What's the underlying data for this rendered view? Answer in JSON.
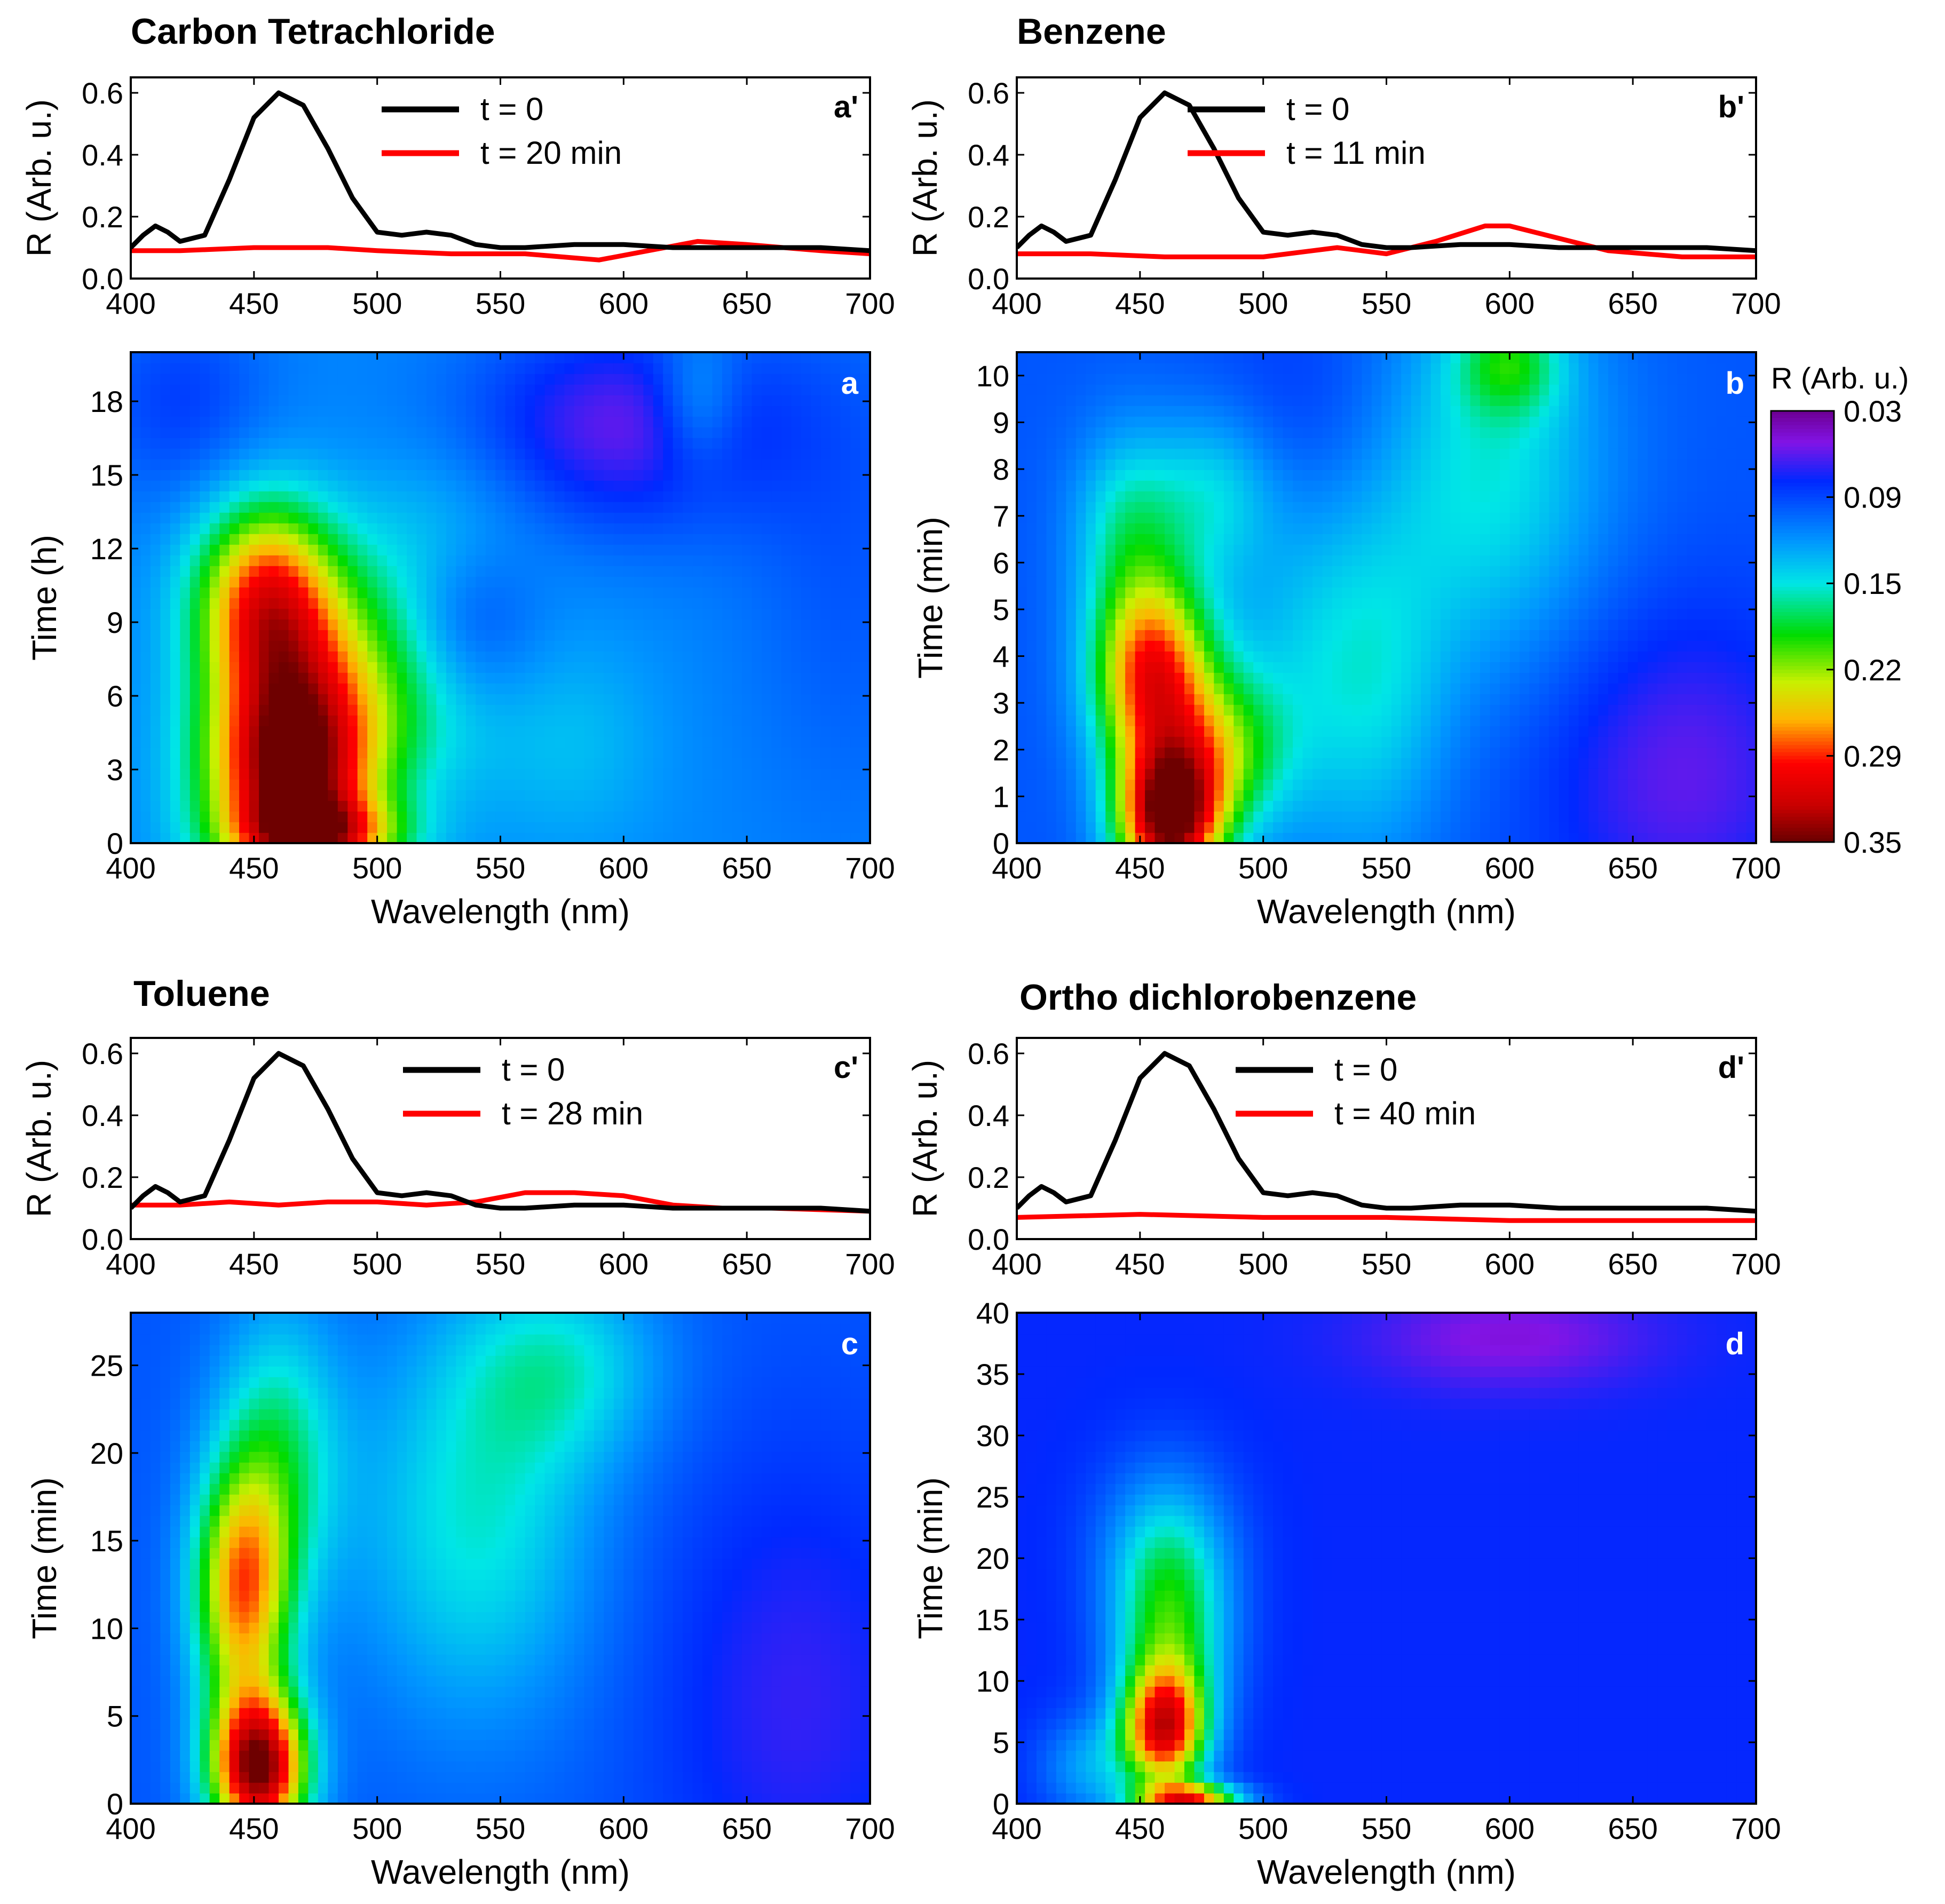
{
  "chart_data": [
    {
      "id": "a_prime",
      "type": "line",
      "title": "Carbon Tetrachloride",
      "panel_label": "a'",
      "xlabel": "",
      "ylabel": "R (Arb. u.)",
      "xlim": [
        400,
        700
      ],
      "ylim": [
        0.0,
        0.65
      ],
      "xticks": [
        "400",
        "450",
        "500",
        "550",
        "600",
        "650",
        "700"
      ],
      "yticks": [
        "0.0",
        "0.2",
        "0.4",
        "0.6"
      ],
      "legend": [
        "t = 0",
        "t = 20 min"
      ],
      "series": [
        {
          "name": "t = 0",
          "color": "#000000",
          "x": [
            400,
            405,
            410,
            415,
            420,
            430,
            440,
            450,
            460,
            470,
            480,
            490,
            500,
            510,
            520,
            530,
            540,
            550,
            560,
            580,
            600,
            620,
            640,
            660,
            680,
            700
          ],
          "y": [
            0.1,
            0.14,
            0.17,
            0.15,
            0.12,
            0.14,
            0.32,
            0.52,
            0.6,
            0.56,
            0.42,
            0.26,
            0.15,
            0.14,
            0.15,
            0.14,
            0.11,
            0.1,
            0.1,
            0.11,
            0.11,
            0.1,
            0.1,
            0.1,
            0.1,
            0.09
          ]
        },
        {
          "name": "t = 20 min",
          "color": "#ff0000",
          "x": [
            400,
            420,
            450,
            480,
            500,
            530,
            560,
            590,
            610,
            630,
            650,
            680,
            700
          ],
          "y": [
            0.09,
            0.09,
            0.1,
            0.1,
            0.09,
            0.08,
            0.08,
            0.06,
            0.09,
            0.12,
            0.11,
            0.09,
            0.08
          ]
        }
      ]
    },
    {
      "id": "b_prime",
      "type": "line",
      "title": "Benzene",
      "panel_label": "b'",
      "xlabel": "",
      "ylabel": "R (Arb. u.)",
      "xlim": [
        400,
        700
      ],
      "ylim": [
        0.0,
        0.65
      ],
      "xticks": [
        "400",
        "450",
        "500",
        "550",
        "600",
        "650",
        "700"
      ],
      "yticks": [
        "0.0",
        "0.2",
        "0.4",
        "0.6"
      ],
      "legend": [
        "t = 0",
        "t = 11 min"
      ],
      "series": [
        {
          "name": "t = 0",
          "color": "#000000",
          "x": [
            400,
            405,
            410,
            415,
            420,
            430,
            440,
            450,
            460,
            470,
            480,
            490,
            500,
            510,
            520,
            530,
            540,
            550,
            560,
            580,
            600,
            620,
            640,
            660,
            680,
            700
          ],
          "y": [
            0.1,
            0.14,
            0.17,
            0.15,
            0.12,
            0.14,
            0.32,
            0.52,
            0.6,
            0.56,
            0.42,
            0.26,
            0.15,
            0.14,
            0.15,
            0.14,
            0.11,
            0.1,
            0.1,
            0.11,
            0.11,
            0.1,
            0.1,
            0.1,
            0.1,
            0.09
          ]
        },
        {
          "name": "t = 11 min",
          "color": "#ff0000",
          "x": [
            400,
            430,
            460,
            500,
            520,
            530,
            550,
            570,
            590,
            600,
            620,
            640,
            670,
            700
          ],
          "y": [
            0.08,
            0.08,
            0.07,
            0.07,
            0.09,
            0.1,
            0.08,
            0.12,
            0.17,
            0.17,
            0.13,
            0.09,
            0.07,
            0.07
          ]
        }
      ]
    },
    {
      "id": "c_prime",
      "type": "line",
      "title": "Toluene",
      "panel_label": "c'",
      "xlabel": "",
      "ylabel": "R (Arb. u.)",
      "xlim": [
        400,
        700
      ],
      "ylim": [
        0.0,
        0.65
      ],
      "xticks": [
        "400",
        "450",
        "500",
        "550",
        "600",
        "650",
        "700"
      ],
      "yticks": [
        "0.0",
        "0.2",
        "0.4",
        "0.6"
      ],
      "legend": [
        "t = 0",
        "t = 28 min"
      ],
      "series": [
        {
          "name": "t = 0",
          "color": "#000000",
          "x": [
            400,
            405,
            410,
            415,
            420,
            430,
            440,
            450,
            460,
            470,
            480,
            490,
            500,
            510,
            520,
            530,
            540,
            550,
            560,
            580,
            600,
            620,
            640,
            660,
            680,
            700
          ],
          "y": [
            0.1,
            0.14,
            0.17,
            0.15,
            0.12,
            0.14,
            0.32,
            0.52,
            0.6,
            0.56,
            0.42,
            0.26,
            0.15,
            0.14,
            0.15,
            0.14,
            0.11,
            0.1,
            0.1,
            0.11,
            0.11,
            0.1,
            0.1,
            0.1,
            0.1,
            0.09
          ]
        },
        {
          "name": "t = 28 min",
          "color": "#ff0000",
          "x": [
            400,
            420,
            440,
            460,
            480,
            500,
            520,
            540,
            560,
            580,
            600,
            620,
            640,
            660,
            700
          ],
          "y": [
            0.11,
            0.11,
            0.12,
            0.11,
            0.12,
            0.12,
            0.11,
            0.12,
            0.15,
            0.15,
            0.14,
            0.11,
            0.1,
            0.1,
            0.09
          ]
        }
      ]
    },
    {
      "id": "d_prime",
      "type": "line",
      "title": "Ortho dichlorobenzene",
      "panel_label": "d'",
      "xlabel": "",
      "ylabel": "R (Arb. u.)",
      "xlim": [
        400,
        700
      ],
      "ylim": [
        0.0,
        0.65
      ],
      "xticks": [
        "400",
        "450",
        "500",
        "550",
        "600",
        "650",
        "700"
      ],
      "yticks": [
        "0.0",
        "0.2",
        "0.4",
        "0.6"
      ],
      "legend": [
        "t = 0",
        "t = 40 min"
      ],
      "series": [
        {
          "name": "t = 0",
          "color": "#000000",
          "x": [
            400,
            405,
            410,
            415,
            420,
            430,
            440,
            450,
            460,
            470,
            480,
            490,
            500,
            510,
            520,
            530,
            540,
            550,
            560,
            580,
            600,
            620,
            640,
            660,
            680,
            700
          ],
          "y": [
            0.1,
            0.14,
            0.17,
            0.15,
            0.12,
            0.14,
            0.32,
            0.52,
            0.6,
            0.56,
            0.42,
            0.26,
            0.15,
            0.14,
            0.15,
            0.14,
            0.11,
            0.1,
            0.1,
            0.11,
            0.11,
            0.1,
            0.1,
            0.1,
            0.1,
            0.09
          ]
        },
        {
          "name": "t = 40 min",
          "color": "#ff0000",
          "x": [
            400,
            450,
            500,
            550,
            600,
            650,
            700
          ],
          "y": [
            0.07,
            0.08,
            0.07,
            0.07,
            0.06,
            0.06,
            0.06
          ]
        }
      ]
    },
    {
      "id": "a",
      "type": "heatmap",
      "panel_label": "a",
      "xlabel": "Wavelength (nm)",
      "ylabel": "Time (h)",
      "xlim": [
        400,
        700
      ],
      "ylim": [
        0,
        20
      ],
      "xticks": [
        "400",
        "450",
        "500",
        "550",
        "600",
        "650",
        "700"
      ],
      "yticks": [
        "0",
        "3",
        "6",
        "9",
        "12",
        "15",
        "18"
      ],
      "background": 0.12,
      "blobs": [
        {
          "x": 465,
          "y": 3,
          "sx": 24,
          "sy": 3.5,
          "amp": 0.24
        },
        {
          "x": 455,
          "y": 10,
          "sx": 20,
          "sy": 2.8,
          "amp": 0.16
        },
        {
          "x": 478,
          "y": 0.4,
          "sx": 22,
          "sy": 1.0,
          "amp": 0.1
        },
        {
          "x": 505,
          "y": 7,
          "sx": 30,
          "sy": 3.5,
          "amp": 0.06
        },
        {
          "x": 530,
          "y": 11,
          "sx": 28,
          "sy": 3.5,
          "amp": 0.03
        },
        {
          "x": 630,
          "y": 18,
          "sx": 12,
          "sy": 2.0,
          "amp": 0.04
        },
        {
          "x": 580,
          "y": 4,
          "sx": 25,
          "sy": 3.0,
          "amp": 0.02
        },
        {
          "x": 535,
          "y": 9,
          "sx": 22,
          "sy": 2.5,
          "amp": -0.06
        },
        {
          "x": 600,
          "y": 17,
          "sx": 45,
          "sy": 3.0,
          "amp": -0.06
        },
        {
          "x": 420,
          "y": 18,
          "sx": 25,
          "sy": 3.0,
          "amp": -0.03
        },
        {
          "x": 690,
          "y": 12,
          "sx": 30,
          "sy": 8.0,
          "amp": -0.02
        }
      ]
    },
    {
      "id": "b",
      "type": "heatmap",
      "panel_label": "b",
      "xlabel": "Wavelength (nm)",
      "ylabel": "Time (min)",
      "xlim": [
        400,
        700
      ],
      "ylim": [
        0,
        10.5
      ],
      "xticks": [
        "400",
        "450",
        "500",
        "550",
        "600",
        "650",
        "700"
      ],
      "yticks": [
        "0",
        "1",
        "2",
        "3",
        "4",
        "5",
        "6",
        "7",
        "8",
        "9",
        "10"
      ],
      "background": 0.1,
      "blobs": [
        {
          "x": 462,
          "y": 0.5,
          "sx": 15,
          "sy": 1.1,
          "amp": 0.24
        },
        {
          "x": 455,
          "y": 3.6,
          "sx": 17,
          "sy": 1.5,
          "amp": 0.19
        },
        {
          "x": 483,
          "y": 2.0,
          "sx": 18,
          "sy": 1.2,
          "amp": 0.09
        },
        {
          "x": 445,
          "y": 6.8,
          "sx": 16,
          "sy": 1.5,
          "amp": 0.06
        },
        {
          "x": 480,
          "y": 7.5,
          "sx": 18,
          "sy": 1.3,
          "amp": 0.05
        },
        {
          "x": 520,
          "y": 4.0,
          "sx": 25,
          "sy": 3.0,
          "amp": 0.04
        },
        {
          "x": 590,
          "y": 8.0,
          "sx": 35,
          "sy": 3.0,
          "amp": 0.06
        },
        {
          "x": 600,
          "y": 10.3,
          "sx": 15,
          "sy": 0.8,
          "amp": 0.06
        },
        {
          "x": 550,
          "y": 3.0,
          "sx": 20,
          "sy": 2.5,
          "amp": 0.03
        },
        {
          "x": 670,
          "y": 1.5,
          "sx": 40,
          "sy": 2.5,
          "amp": -0.04
        },
        {
          "x": 520,
          "y": 9.0,
          "sx": 30,
          "sy": 2.0,
          "amp": -0.02
        }
      ]
    },
    {
      "id": "c",
      "type": "heatmap",
      "panel_label": "c",
      "xlabel": "Wavelength (nm)",
      "ylabel": "Time (min)",
      "xlim": [
        400,
        700
      ],
      "ylim": [
        0,
        28
      ],
      "xticks": [
        "400",
        "450",
        "500",
        "550",
        "600",
        "650",
        "700"
      ],
      "yticks": [
        "0",
        "5",
        "10",
        "15",
        "20",
        "25"
      ],
      "background": 0.1,
      "blobs": [
        {
          "x": 452,
          "y": 2,
          "sx": 14,
          "sy": 3.0,
          "amp": 0.24
        },
        {
          "x": 445,
          "y": 12,
          "sx": 14,
          "sy": 5.0,
          "amp": 0.16
        },
        {
          "x": 460,
          "y": 20,
          "sx": 18,
          "sy": 6.0,
          "amp": 0.07
        },
        {
          "x": 540,
          "y": 16,
          "sx": 35,
          "sy": 8.0,
          "amp": 0.06
        },
        {
          "x": 575,
          "y": 25,
          "sx": 30,
          "sy": 4.0,
          "amp": 0.05
        },
        {
          "x": 670,
          "y": 6,
          "sx": 40,
          "sy": 10.0,
          "amp": -0.03
        }
      ]
    },
    {
      "id": "d",
      "type": "heatmap",
      "panel_label": "d",
      "xlabel": "Wavelength (nm)",
      "ylabel": "Time (min)",
      "xlim": [
        400,
        700
      ],
      "ylim": [
        0,
        40
      ],
      "xticks": [
        "400",
        "450",
        "500",
        "550",
        "600",
        "650",
        "700"
      ],
      "yticks": [
        "0",
        "5",
        "10",
        "15",
        "20",
        "25",
        "30",
        "35",
        "40"
      ],
      "background": 0.08,
      "blobs": [
        {
          "x": 460,
          "y": 6,
          "sx": 12,
          "sy": 3.5,
          "amp": 0.2
        },
        {
          "x": 462,
          "y": 14,
          "sx": 17,
          "sy": 6.0,
          "amp": 0.11
        },
        {
          "x": 470,
          "y": 0.3,
          "sx": 15,
          "sy": 1.0,
          "amp": 0.18
        },
        {
          "x": 460,
          "y": 22,
          "sx": 20,
          "sy": 5.0,
          "amp": 0.04
        },
        {
          "x": 430,
          "y": 3,
          "sx": 15,
          "sy": 3.0,
          "amp": 0.05
        },
        {
          "x": 600,
          "y": 38,
          "sx": 40,
          "sy": 3.0,
          "amp": -0.03
        }
      ]
    }
  ],
  "colorbar": {
    "title": "R (Arb. u.)",
    "ticks": [
      "0.03",
      "0.09",
      "0.15",
      "0.22",
      "0.29",
      "0.35"
    ],
    "range": [
      0.03,
      0.35
    ]
  }
}
